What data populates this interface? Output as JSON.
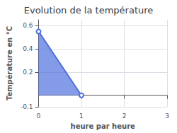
{
  "chart_data": {
    "type": "area",
    "title": "Evolution de la température",
    "xlabel": "heure par heure",
    "ylabel": "Température en °C",
    "x": [
      0,
      1
    ],
    "values": [
      0.55,
      0.0
    ],
    "xlim": [
      0,
      3
    ],
    "ylim": [
      -0.1,
      0.65
    ],
    "xticks": [
      0,
      1,
      2,
      3
    ],
    "yticks": [
      -0.1,
      0.2,
      0.4,
      0.6
    ],
    "grid": true
  }
}
